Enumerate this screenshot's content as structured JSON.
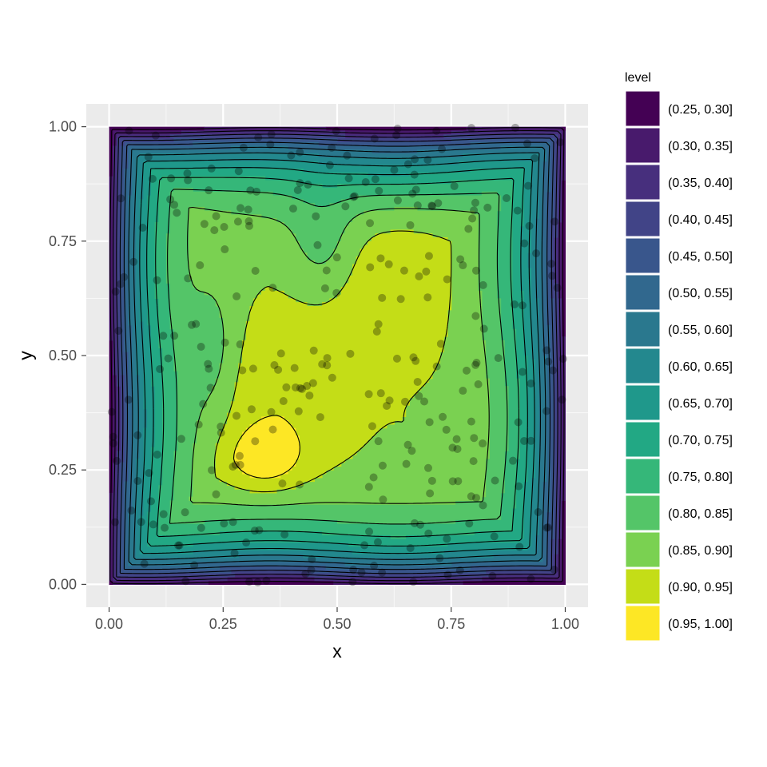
{
  "chart_data": {
    "type": "heatmap",
    "subtype": "filled-contour",
    "title": "",
    "xlabel": "x",
    "ylabel": "y",
    "xlim": [
      -0.05,
      1.05
    ],
    "ylim": [
      -0.05,
      1.05
    ],
    "x_ticks": [
      0,
      0.25,
      0.5,
      0.75,
      1
    ],
    "x_tick_labels": [
      "0.00",
      "0.25",
      "0.50",
      "0.75",
      "1.00"
    ],
    "y_ticks": [
      0,
      0.25,
      0.5,
      0.75,
      1
    ],
    "y_tick_labels": [
      "0.00",
      "0.25",
      "0.50",
      "0.75",
      "1.00"
    ],
    "grid": true,
    "legend_position": "right",
    "legend": {
      "title": "level",
      "entries": [
        {
          "label": "(0.25, 0.30]",
          "color": "#440154"
        },
        {
          "label": "(0.30, 0.35]",
          "color": "#481A6C"
        },
        {
          "label": "(0.35, 0.40]",
          "color": "#472F7D"
        },
        {
          "label": "(0.40, 0.45]",
          "color": "#414487"
        },
        {
          "label": "(0.45, 0.50]",
          "color": "#39568C"
        },
        {
          "label": "(0.50, 0.55]",
          "color": "#31688E"
        },
        {
          "label": "(0.55, 0.60]",
          "color": "#2A788E"
        },
        {
          "label": "(0.60, 0.65]",
          "color": "#23888E"
        },
        {
          "label": "(0.65, 0.70]",
          "color": "#1F988B"
        },
        {
          "label": "(0.70, 0.75]",
          "color": "#22A884"
        },
        {
          "label": "(0.75, 0.80]",
          "color": "#35B779"
        },
        {
          "label": "(0.80, 0.85]",
          "color": "#54C568"
        },
        {
          "label": "(0.85, 0.90]",
          "color": "#7AD151"
        },
        {
          "label": "(0.90, 0.95]",
          "color": "#C4DD17"
        },
        {
          "label": "(0.95, 1.00]",
          "color": "#FDE725"
        }
      ]
    },
    "breaks": [
      0.25,
      0.3,
      0.35,
      0.4,
      0.45,
      0.5,
      0.55,
      0.6,
      0.65,
      0.7,
      0.75,
      0.8,
      0.85,
      0.9,
      0.95,
      1.0
    ],
    "points_count": 300,
    "point_color": "#000000",
    "point_opacity": 0.3
  }
}
